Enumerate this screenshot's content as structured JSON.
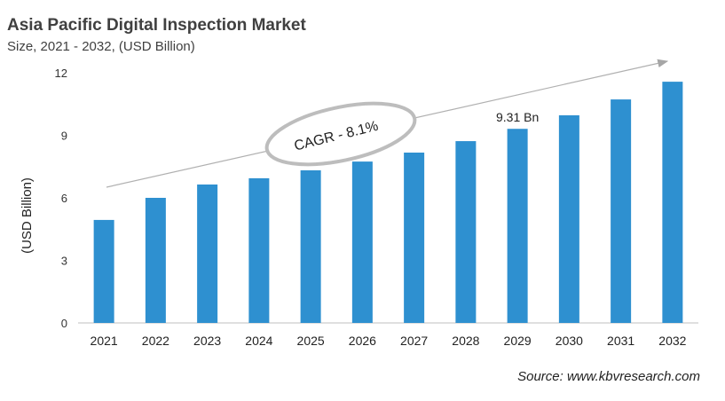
{
  "chart_data": {
    "type": "bar",
    "title": "Asia Pacific Digital Inspection Market",
    "subtitle": "Size, 2021 - 2032, (USD Billion)",
    "ylabel": "(USD Billion)",
    "xlabel": "",
    "categories": [
      "2021",
      "2022",
      "2023",
      "2024",
      "2025",
      "2026",
      "2027",
      "2028",
      "2029",
      "2030",
      "2031",
      "2032"
    ],
    "values": [
      4.94,
      6.0,
      6.64,
      6.94,
      7.32,
      7.74,
      8.17,
      8.72,
      9.31,
      9.96,
      10.72,
      11.57
    ],
    "ylim": [
      0,
      12
    ],
    "yticks": [
      0,
      3,
      6,
      9,
      12
    ],
    "grid": false,
    "bar_color": "#2E90D0",
    "annotations": {
      "cagr": "CAGR - 8.1%",
      "value_label": "9.31 Bn",
      "value_label_category": "2029"
    },
    "source": "Source: www.kbvresearch.com"
  }
}
